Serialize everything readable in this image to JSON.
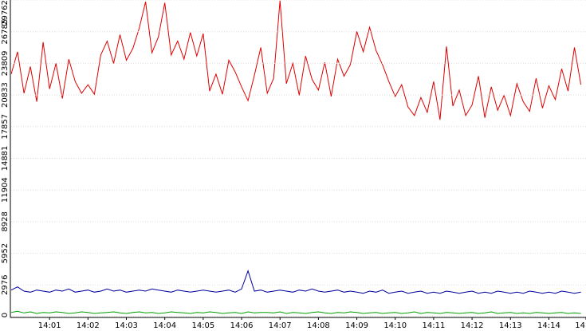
{
  "chart_data": {
    "type": "line",
    "x": [
      0,
      10,
      20,
      30,
      40,
      50,
      60,
      70,
      80,
      90,
      100,
      110,
      120,
      130,
      140,
      150,
      160,
      170,
      180,
      190,
      200,
      210,
      220,
      230,
      240,
      250,
      260,
      270,
      280,
      290,
      300,
      310,
      320,
      330,
      340,
      350,
      360,
      370,
      380,
      390,
      400,
      410,
      420,
      430,
      440,
      450,
      460,
      470,
      480,
      490,
      500,
      510,
      520,
      530,
      540,
      550,
      560,
      570,
      580,
      590,
      600,
      610,
      620,
      630,
      640,
      650,
      660,
      670,
      680,
      690,
      700,
      710,
      720,
      730,
      740,
      750,
      760,
      770,
      780,
      790,
      800,
      810,
      820,
      830,
      840,
      850,
      860,
      870,
      880,
      890
    ],
    "series": [
      {
        "color": "#e00000",
        "values": [
          22800,
          24900,
          21000,
          23500,
          20200,
          25800,
          21400,
          23800,
          20500,
          24200,
          22100,
          21000,
          21800,
          20900,
          24600,
          25900,
          23800,
          26500,
          24100,
          25200,
          27100,
          29600,
          24800,
          26300,
          29500,
          24600,
          25900,
          24200,
          26700,
          24500,
          26600,
          21200,
          22800,
          20900,
          24100,
          23000,
          21600,
          20300,
          22700,
          25300,
          21000,
          22400,
          29700,
          21900,
          23800,
          20800,
          24500,
          22300,
          21300,
          23900,
          20700,
          24200,
          22600,
          23700,
          26800,
          24900,
          27200,
          25000,
          23700,
          22100,
          20700,
          21800,
          19700,
          18900,
          20600,
          19200,
          22100,
          18500,
          25400,
          19800,
          21300,
          18900,
          19900,
          22600,
          18700,
          21600,
          19400,
          20800,
          18900,
          21900,
          20200,
          19300,
          22400,
          19600,
          21700,
          20400,
          23300,
          21200,
          25300,
          21800
        ]
      },
      {
        "color": "#000099",
        "values": [
          2500,
          2800,
          2400,
          2300,
          2500,
          2400,
          2300,
          2500,
          2400,
          2600,
          2300,
          2400,
          2500,
          2300,
          2400,
          2600,
          2400,
          2500,
          2300,
          2400,
          2500,
          2400,
          2600,
          2500,
          2400,
          2300,
          2500,
          2400,
          2300,
          2400,
          2500,
          2400,
          2300,
          2400,
          2500,
          2300,
          2600,
          4300,
          2400,
          2500,
          2300,
          2400,
          2500,
          2400,
          2300,
          2500,
          2400,
          2600,
          2400,
          2300,
          2400,
          2500,
          2300,
          2400,
          2300,
          2200,
          2400,
          2300,
          2500,
          2200,
          2300,
          2400,
          2200,
          2300,
          2400,
          2200,
          2300,
          2200,
          2400,
          2300,
          2200,
          2300,
          2400,
          2200,
          2300,
          2200,
          2400,
          2300,
          2200,
          2300,
          2200,
          2400,
          2300,
          2200,
          2300,
          2200,
          2400,
          2300,
          2200,
          2300
        ]
      },
      {
        "color": "#00a000",
        "values": [
          400,
          500,
          350,
          450,
          300,
          400,
          350,
          450,
          400,
          300,
          350,
          450,
          400,
          300,
          350,
          400,
          450,
          350,
          300,
          400,
          450,
          350,
          400,
          300,
          350,
          450,
          400,
          350,
          300,
          400,
          350,
          450,
          400,
          300,
          350,
          400,
          300,
          450,
          350,
          400,
          400,
          350,
          450,
          300,
          400,
          350,
          300,
          400,
          450,
          350,
          300,
          400,
          350,
          450,
          400,
          300,
          350,
          400,
          300,
          350,
          400,
          300,
          350,
          450,
          300,
          400,
          350,
          300,
          400,
          350,
          300,
          350,
          400,
          300,
          350,
          450,
          300,
          350,
          400,
          300,
          350,
          300,
          400,
          350,
          300,
          350,
          400,
          300,
          350,
          300
        ]
      }
    ],
    "xlim": [
      0,
      898
    ],
    "xticks": [
      {
        "value": 60,
        "label": "14:01"
      },
      {
        "value": 120,
        "label": "14:02"
      },
      {
        "value": 180,
        "label": "14:03"
      },
      {
        "value": 240,
        "label": "14:04"
      },
      {
        "value": 300,
        "label": "14:05"
      },
      {
        "value": 360,
        "label": "14:06"
      },
      {
        "value": 420,
        "label": "14:07"
      },
      {
        "value": 480,
        "label": "14:08"
      },
      {
        "value": 540,
        "label": "14:09"
      },
      {
        "value": 600,
        "label": "14:10"
      },
      {
        "value": 660,
        "label": "14:11"
      },
      {
        "value": 720,
        "label": "14:12"
      },
      {
        "value": 780,
        "label": "14:13"
      },
      {
        "value": 840,
        "label": "14:14"
      },
      {
        "value": 898,
        "label": "14"
      }
    ],
    "ylim": [
      0,
      29762
    ],
    "yticks": [
      0,
      2976,
      5952,
      8928,
      11904,
      14881,
      17857,
      20833,
      23809,
      26785,
      29762
    ],
    "grid": true
  }
}
